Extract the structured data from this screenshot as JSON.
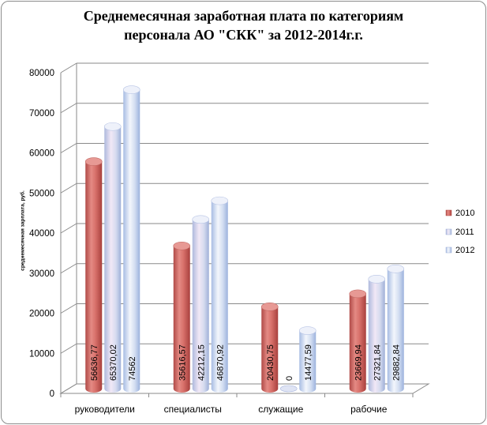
{
  "chart_data": {
    "type": "bar",
    "title_line1": "Среднемесячная заработная плата по категориям",
    "title_line2": "персонала АО \"СКК\" за 2012-2014г.г.",
    "ylabel": "среднемесячная зарплата, руб.",
    "xlabel": "",
    "ylim": [
      0,
      80000
    ],
    "yticks": [
      0,
      10000,
      20000,
      30000,
      40000,
      50000,
      60000,
      70000,
      80000
    ],
    "categories": [
      "руководители",
      "специалисты",
      "служащие",
      "рабочие"
    ],
    "series": [
      {
        "name": "2010",
        "values": [
          56636.77,
          35616.57,
          20430.75,
          23669.94
        ],
        "labels": [
          "56636,77",
          "35616,57",
          "20430,75",
          "23669,94"
        ],
        "color": "#d36b66"
      },
      {
        "name": "2011",
        "values": [
          65370.02,
          42212.15,
          0,
          27321.84
        ],
        "labels": [
          "65370,02",
          "42212,15",
          "0",
          "27321,84"
        ],
        "color": "#c6cde6"
      },
      {
        "name": "2012",
        "values": [
          74562,
          46870.92,
          14477.59,
          29882.84
        ],
        "labels": [
          "74562",
          "46870,92",
          "14477,59",
          "29882,84"
        ],
        "color": "#c2d0ea"
      }
    ],
    "grid": true,
    "legend_position": "right"
  }
}
